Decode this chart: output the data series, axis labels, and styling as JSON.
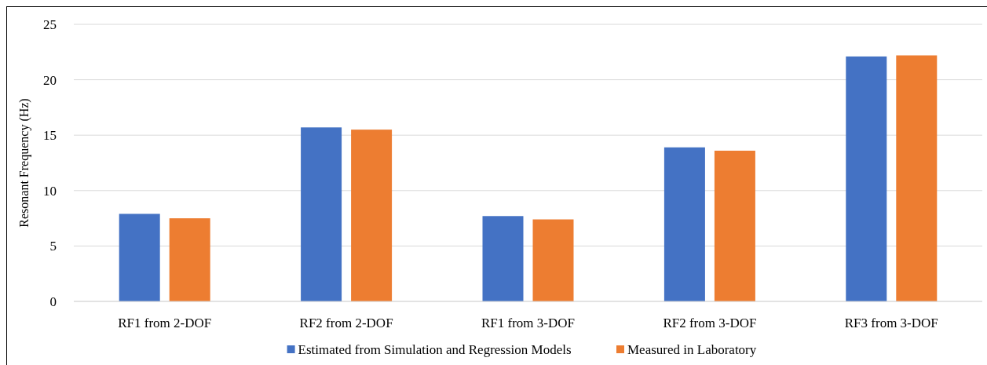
{
  "chart_data": {
    "type": "bar",
    "ylabel": "Resonant Frequency (Hz)",
    "categories": [
      "RF1 from 2-DOF",
      "RF2 from 2-DOF",
      "RF1 from 3-DOF",
      "RF2 from 3-DOF",
      "RF3 from 3-DOF"
    ],
    "series": [
      {
        "name": "Estimated from Simulation and Regression Models",
        "color": "#4472c4",
        "values": [
          7.9,
          15.7,
          7.7,
          13.9,
          22.1
        ]
      },
      {
        "name": "Measured in Laboratory",
        "color": "#ed7d31",
        "values": [
          7.5,
          15.5,
          7.4,
          13.6,
          22.2
        ]
      }
    ],
    "ylim": [
      0,
      25
    ],
    "yticks": [
      0,
      5,
      10,
      15,
      20,
      25
    ],
    "grid": "y",
    "legend": "bottom"
  }
}
